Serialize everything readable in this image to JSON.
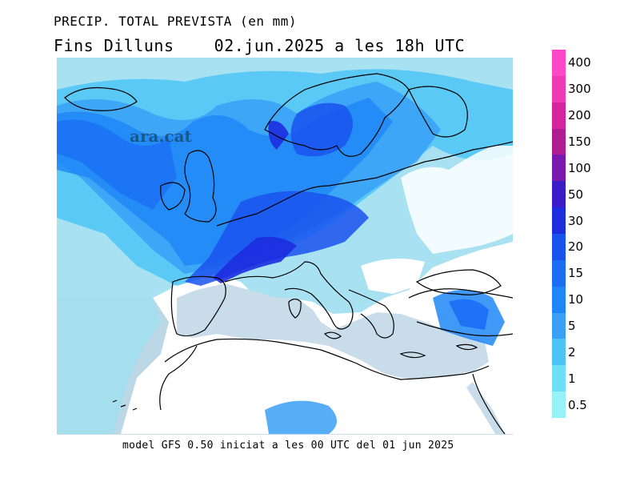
{
  "title_line1": "PRECIP. TOTAL PREVISTA (en mm)",
  "title_line2": "Fins Dilluns    02.jun.2025 a les 18h UTC",
  "footer": "model GFS 0.50 iniciat a les 00 UTC del 01 jun 2025",
  "logo_text": "ara.cat",
  "legend": {
    "entries": [
      {
        "label": "400",
        "color": "#ff48c8"
      },
      {
        "label": "300",
        "color": "#ee3ab4"
      },
      {
        "label": "200",
        "color": "#d4259e"
      },
      {
        "label": "150",
        "color": "#b01a92"
      },
      {
        "label": "100",
        "color": "#7a18b0"
      },
      {
        "label": "50",
        "color": "#3a1cc8"
      },
      {
        "label": "30",
        "color": "#1c2ee0"
      },
      {
        "label": "20",
        "color": "#1a52ee"
      },
      {
        "label": "15",
        "color": "#1a6ef4"
      },
      {
        "label": "10",
        "color": "#1e86f6"
      },
      {
        "label": "5",
        "color": "#3aa0f6"
      },
      {
        "label": "2",
        "color": "#4cc4f6"
      },
      {
        "label": "1",
        "color": "#6ee0f6"
      },
      {
        "label": "0.5",
        "color": "#96f2f6"
      }
    ]
  },
  "colors": {
    "sea": "#c8dcea",
    "land_dry": "#ffffff",
    "coastline": "#000000"
  }
}
